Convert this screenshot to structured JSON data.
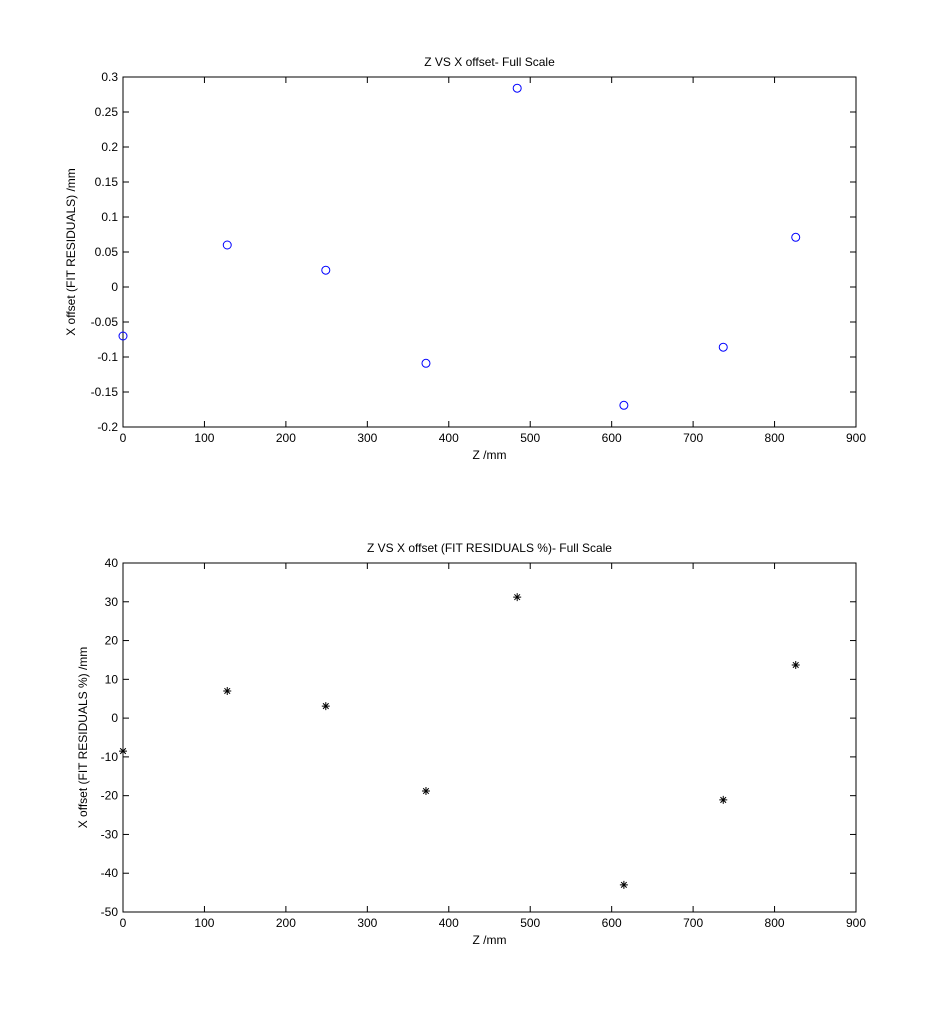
{
  "chart_data": [
    {
      "type": "scatter",
      "title": "Z VS X offset- Full Scale",
      "xlabel": "Z /mm",
      "ylabel": "X offset (FIT RESIDUALS) /mm",
      "x": [
        0,
        128,
        249,
        372,
        484,
        615,
        737,
        826
      ],
      "values": [
        -0.07,
        0.06,
        0.024,
        -0.109,
        0.284,
        -0.169,
        -0.086,
        0.071
      ],
      "color": "#0000ff",
      "marker": "o",
      "xlim": [
        0,
        900
      ],
      "xticks": [
        0,
        100,
        200,
        300,
        400,
        500,
        600,
        700,
        800,
        900
      ],
      "ylim": [
        -0.2,
        0.3
      ],
      "yticks": [
        -0.2,
        -0.15,
        -0.1,
        -0.05,
        0,
        0.05,
        0.1,
        0.15,
        0.2,
        0.25,
        0.3
      ]
    },
    {
      "type": "scatter",
      "title": "Z VS X offset (FIT RESIDUALS %)- Full Scale",
      "xlabel": "Z /mm",
      "ylabel": "X offset (FIT RESIDUALS %) /mm",
      "x": [
        0,
        128,
        249,
        372,
        484,
        615,
        737,
        826
      ],
      "values": [
        -8.5,
        7,
        3.1,
        -18.8,
        31.2,
        -43,
        -21.1,
        13.7
      ],
      "color": "#000000",
      "marker": "*",
      "xlim": [
        0,
        900
      ],
      "xticks": [
        0,
        100,
        200,
        300,
        400,
        500,
        600,
        700,
        800,
        900
      ],
      "ylim": [
        -50,
        40
      ],
      "yticks": [
        -50,
        -40,
        -30,
        -20,
        -10,
        0,
        10,
        20,
        30,
        40
      ]
    }
  ]
}
